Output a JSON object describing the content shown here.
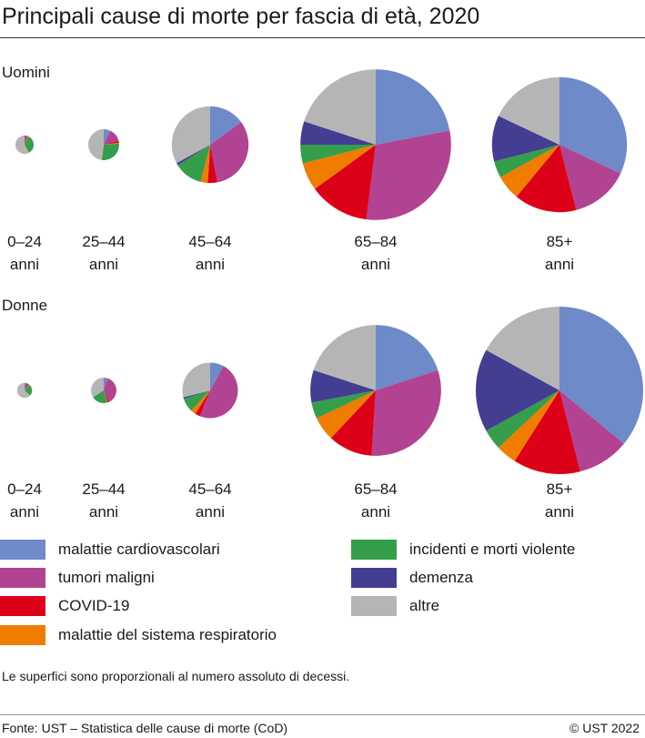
{
  "title": "Principali cause di morte per fascia di età, 2020",
  "note": "Le superfici sono proporzionali al numero assoluto di decessi.",
  "source": "Fonte: UST – Statistica delle cause di morte (CoD)",
  "copyright": "© UST 2022",
  "chart_data": {
    "type": "pie",
    "categories": [
      "malattie cardiovascolari",
      "tumori maligni",
      "COVID-19",
      "malattie del sistema respiratorio",
      "incidenti e morti violente",
      "demenza",
      "altre"
    ],
    "colors": [
      "#6e8ac8",
      "#b24392",
      "#dc0018",
      "#f07c00",
      "#359e4a",
      "#433e92",
      "#b5b5b5"
    ],
    "unit": "% (estimated shares); relative_size = area relative to largest pie",
    "groups": [
      {
        "name": "Uomini",
        "pies": [
          {
            "label": [
              "0–24",
              "anni"
            ],
            "relative_size": 1.2,
            "shares": [
              0,
              5,
              1,
              1,
              35,
              0,
              58
            ]
          },
          {
            "label": [
              "25–44",
              "anni"
            ],
            "relative_size": 3.4,
            "shares": [
              7,
              14,
              2,
              1,
              28,
              0,
              48
            ]
          },
          {
            "label": [
              "45–64",
              "anni"
            ],
            "relative_size": 21,
            "shares": [
              15,
              32,
              4,
              3,
              12,
              1,
              33
            ]
          },
          {
            "label": [
              "65–84",
              "anni"
            ],
            "relative_size": 81,
            "shares": [
              22,
              30,
              13,
              6,
              4,
              5,
              20
            ]
          },
          {
            "label": [
              "85+",
              "anni"
            ],
            "relative_size": 65,
            "shares": [
              32,
              14,
              15,
              6,
              4,
              11,
              18
            ]
          }
        ]
      },
      {
        "name": "Donne",
        "pies": [
          {
            "label": [
              "0–24",
              "anni"
            ],
            "relative_size": 0.8,
            "shares": [
              2,
              8,
              1,
              1,
              25,
              0,
              63
            ]
          },
          {
            "label": [
              "25–44",
              "anni"
            ],
            "relative_size": 2.3,
            "shares": [
              5,
              38,
              2,
              1,
              20,
              0,
              34
            ]
          },
          {
            "label": [
              "45–64",
              "anni"
            ],
            "relative_size": 11,
            "shares": [
              8,
              48,
              3,
              3,
              8,
              1,
              29
            ]
          },
          {
            "label": [
              "65–84",
              "anni"
            ],
            "relative_size": 61,
            "shares": [
              20,
              31,
              11,
              6,
              4,
              8,
              20
            ]
          },
          {
            "label": [
              "85+",
              "anni"
            ],
            "relative_size": 100,
            "shares": [
              36,
              10,
              13,
              4,
              4,
              16,
              17
            ]
          }
        ]
      }
    ]
  }
}
